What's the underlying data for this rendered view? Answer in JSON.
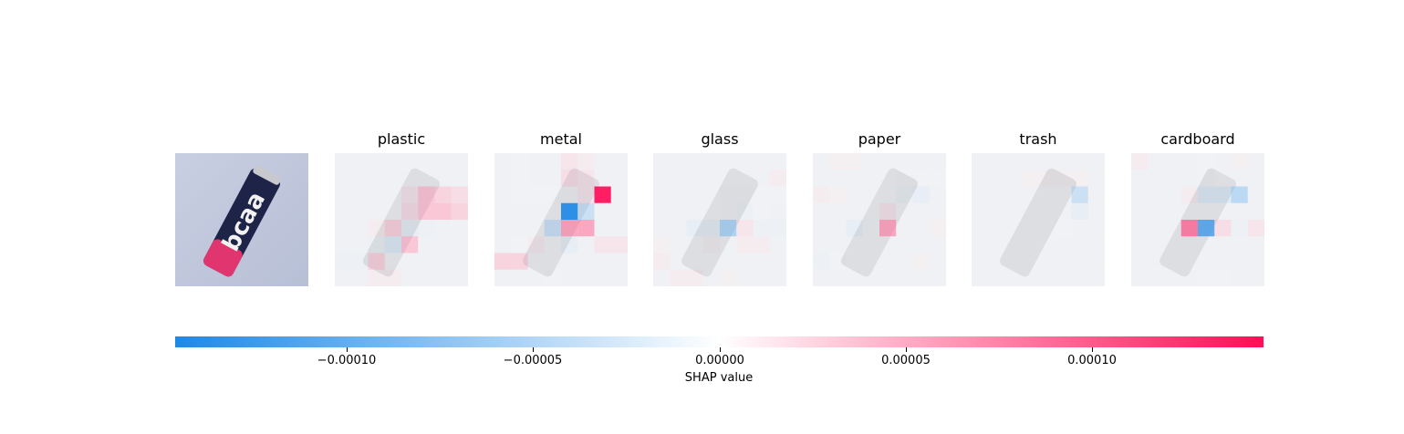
{
  "chart_data": {
    "type": "heatmap",
    "title": "",
    "grid": "off",
    "classes": [
      "plastic",
      "metal",
      "glass",
      "paper",
      "trash",
      "cardboard"
    ],
    "original_image": {
      "description": "blue/pink bcaa can on light background",
      "can_label": "bcaa",
      "colors": {
        "background": "#c9cfe2",
        "can": "#1d2448",
        "accent": "#e0356e"
      }
    },
    "grid_size": 8,
    "shap_maps": [
      {
        "class": "plastic",
        "cells": [
          [
            0,
            0,
            0,
            0,
            0,
            0,
            0,
            0
          ],
          [
            0,
            0,
            0,
            0,
            0,
            0,
            0,
            0
          ],
          [
            0,
            0,
            0,
            0,
            3e-05,
            6e-05,
            5e-05,
            4e-05
          ],
          [
            0,
            0,
            0,
            0,
            4e-05,
            6e-05,
            6e-05,
            5e-05
          ],
          [
            0,
            0,
            2e-05,
            5e-05,
            -3e-05,
            -2e-05,
            0,
            0
          ],
          [
            0,
            0,
            -2e-05,
            -4e-05,
            6e-05,
            0,
            0,
            0
          ],
          [
            -2e-05,
            -2e-05,
            5e-05,
            0,
            0,
            0,
            0,
            0
          ],
          [
            0,
            0,
            2e-05,
            2e-05,
            0,
            0,
            0,
            0
          ]
        ]
      },
      {
        "class": "metal",
        "cells": [
          [
            0,
            -1e-05,
            0,
            0,
            3e-05,
            2e-05,
            0,
            0
          ],
          [
            0,
            -1e-05,
            0,
            0,
            4e-05,
            3e-05,
            0,
            0
          ],
          [
            0,
            -1e-05,
            -1e-05,
            -1e-05,
            -1e-05,
            3e-05,
            0.00014,
            0
          ],
          [
            0,
            0,
            0,
            0,
            -0.00014,
            -6e-05,
            0,
            0
          ],
          [
            0,
            0,
            0,
            -6e-05,
            8e-05,
            8e-05,
            0,
            0
          ],
          [
            0,
            -1e-05,
            2e-05,
            0,
            -3e-05,
            0,
            3e-05,
            3e-05
          ],
          [
            5e-05,
            5e-05,
            0,
            0,
            0,
            0,
            0,
            0
          ],
          [
            0,
            0,
            0,
            -1e-05,
            0,
            0,
            0,
            0
          ]
        ]
      },
      {
        "class": "glass",
        "cells": [
          [
            0,
            0,
            0,
            0,
            0,
            0,
            0,
            0
          ],
          [
            0,
            0,
            0,
            0,
            0,
            0,
            0,
            2e-05
          ],
          [
            0,
            0,
            0,
            0,
            -1e-05,
            -1e-05,
            -1e-05,
            -1e-05
          ],
          [
            0,
            0,
            0,
            0,
            -1e-05,
            -2e-05,
            -1e-05,
            0
          ],
          [
            0,
            0,
            -3e-05,
            -3e-05,
            -8e-05,
            3e-05,
            -2e-05,
            -2e-05
          ],
          [
            1e-05,
            0,
            0,
            1e-05,
            0,
            2e-05,
            2e-05,
            0
          ],
          [
            2e-05,
            0,
            0,
            0,
            0,
            0,
            0,
            0
          ],
          [
            0,
            2e-05,
            2e-05,
            0,
            1e-05,
            0,
            0,
            0
          ]
        ]
      },
      {
        "class": "paper",
        "cells": [
          [
            0,
            1e-05,
            1e-05,
            0,
            0,
            0,
            0,
            0
          ],
          [
            0,
            0,
            0,
            0,
            0,
            -1e-05,
            -1e-05,
            -1e-05
          ],
          [
            2e-05,
            1e-05,
            0,
            0,
            0,
            -2e-05,
            -3e-05,
            0
          ],
          [
            0,
            0,
            0,
            0,
            3e-05,
            0,
            0,
            0
          ],
          [
            0,
            0,
            -3e-05,
            0,
            8e-05,
            0,
            0,
            1e-05
          ],
          [
            0,
            0,
            0,
            0,
            0,
            0,
            0,
            0
          ],
          [
            -2e-05,
            -1e-05,
            0,
            0,
            0,
            0,
            1e-05,
            0
          ],
          [
            0,
            0,
            0,
            0,
            0,
            0,
            0,
            0
          ]
        ]
      },
      {
        "class": "trash",
        "cells": [
          [
            0,
            0,
            0,
            0,
            0,
            0,
            0,
            0
          ],
          [
            0,
            0,
            0,
            1e-05,
            1e-05,
            1e-05,
            1e-05,
            0
          ],
          [
            0,
            0,
            0,
            0,
            0,
            0,
            -6e-05,
            0
          ],
          [
            0,
            0,
            0,
            0,
            0,
            0,
            -3e-05,
            0
          ],
          [
            0,
            0,
            0,
            0,
            0,
            -1e-05,
            0,
            0
          ],
          [
            0,
            0,
            0,
            0,
            0,
            0,
            0,
            0
          ],
          [
            0,
            0,
            0,
            0,
            0,
            0,
            0,
            0
          ],
          [
            0,
            0,
            0,
            0,
            0,
            0,
            0,
            0
          ]
        ]
      },
      {
        "class": "cardboard",
        "cells": [
          [
            2e-05,
            0,
            0,
            0,
            -1e-05,
            0,
            1e-05,
            0
          ],
          [
            0,
            0,
            0,
            0,
            -1e-05,
            0,
            0,
            0
          ],
          [
            0,
            0,
            0,
            2e-05,
            -4e-05,
            -4e-05,
            -7e-05,
            0
          ],
          [
            0,
            0,
            0,
            0,
            0,
            0,
            0,
            0
          ],
          [
            0,
            0,
            0,
            0.0001,
            -0.00012,
            4e-05,
            -2e-05,
            3e-05
          ],
          [
            0,
            0,
            0,
            0,
            0,
            0,
            0,
            0
          ],
          [
            0,
            0,
            0,
            0,
            0,
            0,
            0,
            0
          ],
          [
            0,
            0,
            0,
            0,
            -1e-05,
            -1e-05,
            0,
            0
          ]
        ]
      }
    ],
    "colorbar": {
      "label": "SHAP value",
      "range": [
        -0.000146,
        0.000146
      ],
      "ticks": [
        -0.0001,
        -5e-05,
        0,
        5e-05,
        0.0001
      ],
      "tick_labels": [
        "−0.00010",
        "−0.00005",
        "0.00000",
        "0.00005",
        "0.00010"
      ],
      "colors": {
        "negative": "#1e88e5",
        "neutral": "#ffffff",
        "positive": "#ff0d57"
      }
    }
  }
}
